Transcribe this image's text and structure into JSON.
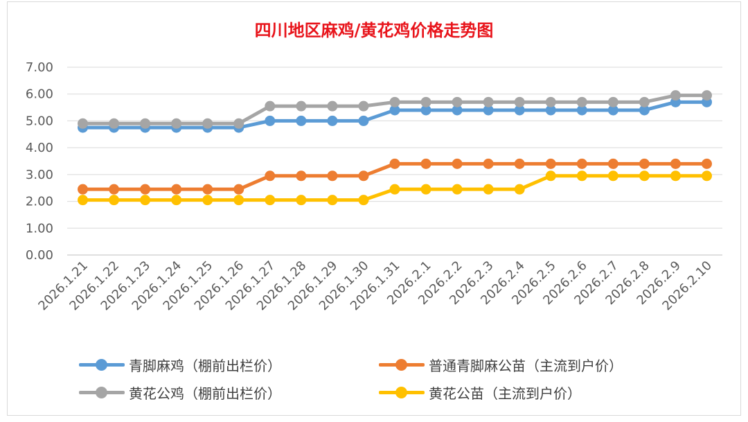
{
  "chart_data": {
    "type": "line",
    "title": "四川地区麻鸡/黄花鸡价格走势图",
    "categories": [
      "2026.1.21",
      "2026.1.22",
      "2026.1.23",
      "2026.1.24",
      "2026.1.25",
      "2026.1.26",
      "2026.1.27",
      "2026.1.28",
      "2026.1.29",
      "2026.1.30",
      "2026.1.31",
      "2026.2.1",
      "2026.2.2",
      "2026.2.3",
      "2026.2.4",
      "2026.2.5",
      "2026.2.6",
      "2026.2.7",
      "2026.2.8",
      "2026.2.9",
      "2026.2.10"
    ],
    "ylim": [
      0,
      7
    ],
    "yticks": [
      "0.00",
      "1.00",
      "2.00",
      "3.00",
      "4.00",
      "5.00",
      "6.00",
      "7.00"
    ],
    "grid": true,
    "legend_position": "bottom",
    "series": [
      {
        "name": "青脚麻鸡（棚前出栏价）",
        "color": "#5b9bd5",
        "values": [
          4.75,
          4.75,
          4.75,
          4.75,
          4.75,
          4.75,
          5.0,
          5.0,
          5.0,
          5.0,
          5.4,
          5.4,
          5.4,
          5.4,
          5.4,
          5.4,
          5.4,
          5.4,
          5.4,
          5.7,
          5.7
        ]
      },
      {
        "name": "普通青脚麻公苗（主流到户价）",
        "color": "#ed7d31",
        "values": [
          2.45,
          2.45,
          2.45,
          2.45,
          2.45,
          2.45,
          2.95,
          2.95,
          2.95,
          2.95,
          3.4,
          3.4,
          3.4,
          3.4,
          3.4,
          3.4,
          3.4,
          3.4,
          3.4,
          3.4,
          3.4
        ]
      },
      {
        "name": "黄花公鸡（棚前出栏价）",
        "color": "#a5a5a5",
        "values": [
          4.9,
          4.9,
          4.9,
          4.9,
          4.9,
          4.9,
          5.55,
          5.55,
          5.55,
          5.55,
          5.7,
          5.7,
          5.7,
          5.7,
          5.7,
          5.7,
          5.7,
          5.7,
          5.7,
          5.95,
          5.95
        ]
      },
      {
        "name": "黄花公苗（主流到户价）",
        "color": "#ffc000",
        "values": [
          2.05,
          2.05,
          2.05,
          2.05,
          2.05,
          2.05,
          2.05,
          2.05,
          2.05,
          2.05,
          2.45,
          2.45,
          2.45,
          2.45,
          2.45,
          2.95,
          2.95,
          2.95,
          2.95,
          2.95,
          2.95
        ]
      }
    ]
  }
}
